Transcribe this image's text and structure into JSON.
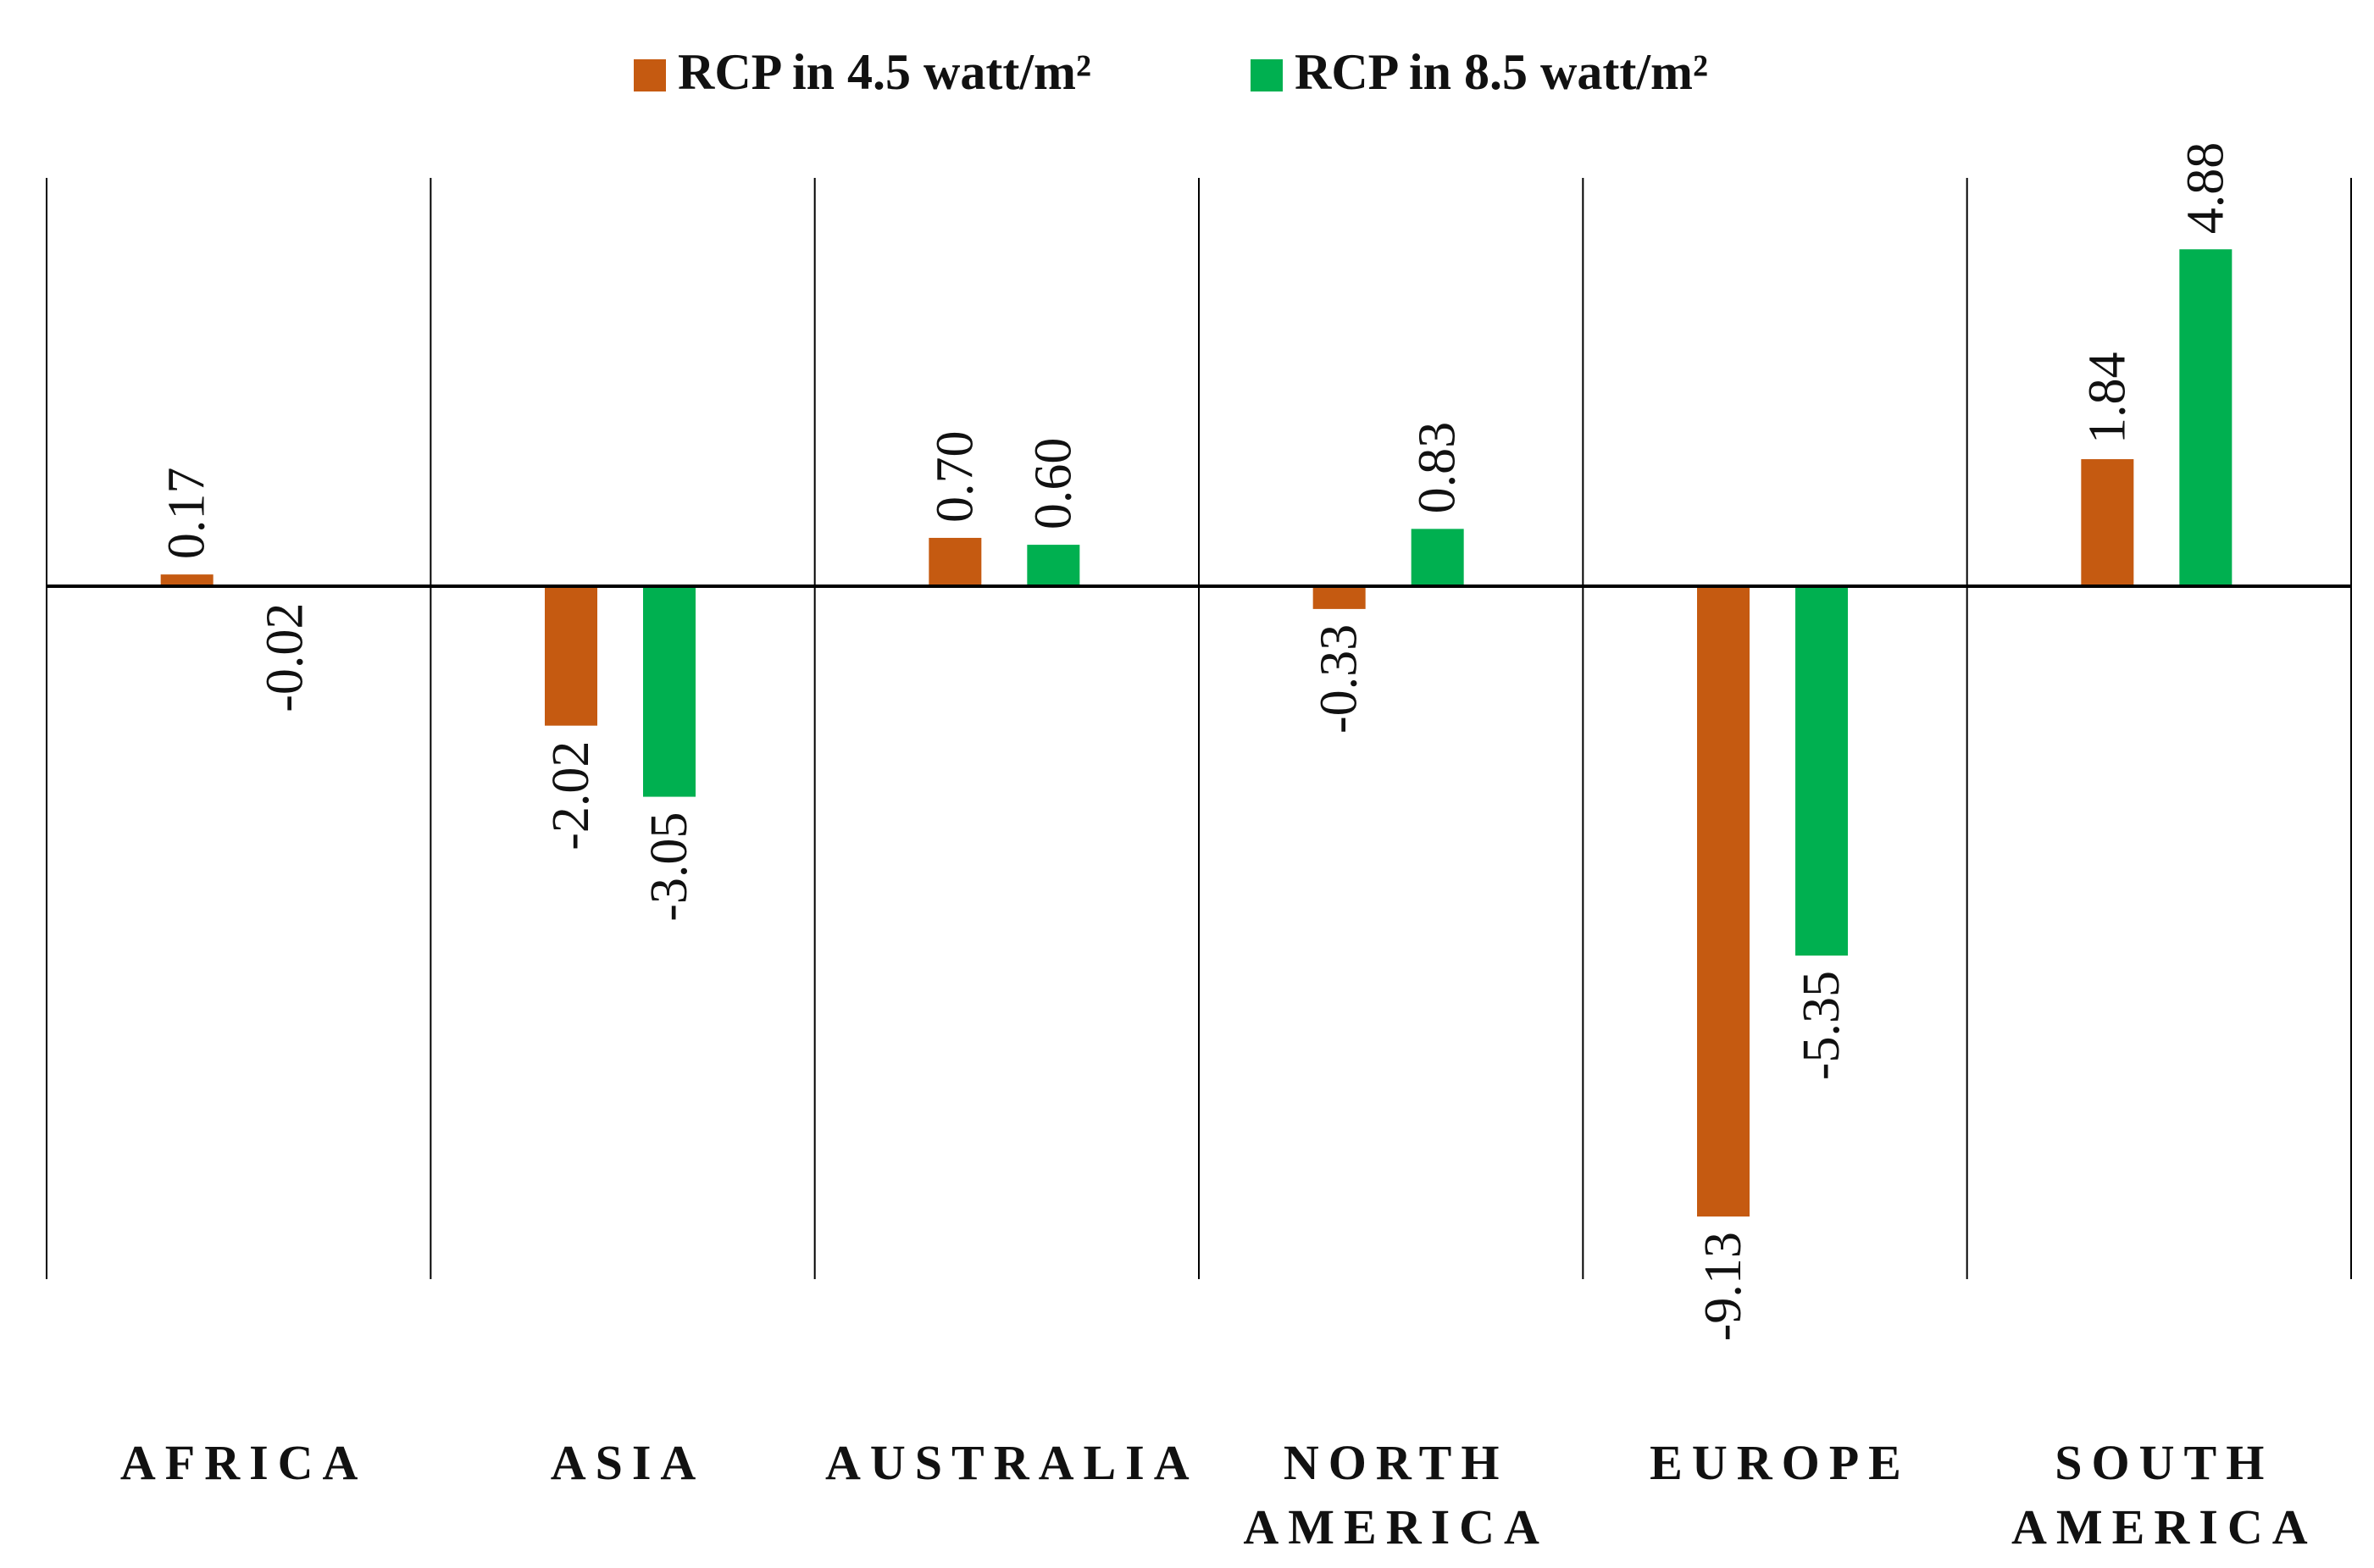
{
  "chart_data": {
    "type": "bar",
    "categories": [
      "AFRICA",
      "ASIA",
      "AUSTRALIA",
      "NORTH AMERICA",
      "EUROPE",
      "SOUTH AMERICA"
    ],
    "category_label_lines": [
      [
        "AFRICA"
      ],
      [
        "ASIA"
      ],
      [
        "AUSTRALIA"
      ],
      [
        "NORTH",
        "AMERICA"
      ],
      [
        "EUROPE"
      ],
      [
        "SOUTH",
        "AMERICA"
      ]
    ],
    "series": [
      {
        "name": "RCP in 4.5 watt/m²",
        "color": "#C55A11",
        "values": [
          0.17,
          -2.02,
          0.7,
          -0.33,
          -9.13,
          1.84
        ],
        "labels": [
          "0.17",
          "-2.02",
          "0.70",
          "-0.33",
          "-9.13",
          "1.84"
        ]
      },
      {
        "name": "RCP in 8.5 watt/m²",
        "color": "#00B050",
        "values": [
          -0.02,
          -3.05,
          0.6,
          0.83,
          -5.35,
          4.88
        ],
        "labels": [
          "-0.02",
          "-3.05",
          "0.60",
          "0.83",
          "-5.35",
          "4.88"
        ]
      }
    ],
    "legend_position": "top",
    "grid": false,
    "data_labels": "rotated-vertical"
  }
}
